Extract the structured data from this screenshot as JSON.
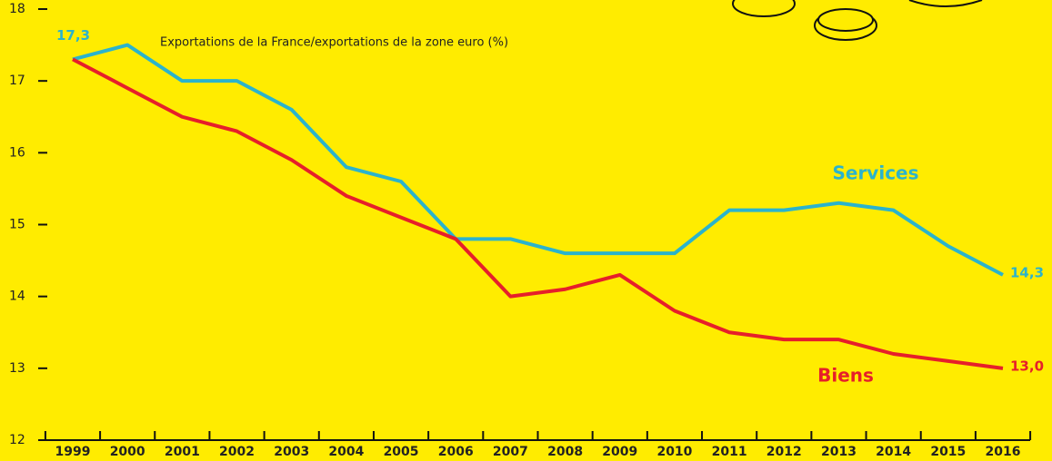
{
  "chart_data": {
    "type": "line",
    "title": "Exportations de la France/exportations de la zone euro (%)",
    "categories": [
      "1999",
      "2000",
      "2001",
      "2002",
      "2003",
      "2004",
      "2005",
      "2006",
      "2007",
      "2008",
      "2009",
      "2010",
      "2011",
      "2012",
      "2013",
      "2014",
      "2015",
      "2016"
    ],
    "series": [
      {
        "name": "Services",
        "color": "#2bb3cc",
        "values": [
          17.3,
          17.5,
          17.0,
          17.0,
          16.6,
          15.8,
          15.6,
          14.8,
          14.8,
          14.6,
          14.6,
          14.6,
          15.2,
          15.2,
          15.3,
          15.2,
          14.7,
          14.3
        ],
        "value_labels": [
          "17,3",
          null,
          null,
          null,
          null,
          null,
          null,
          null,
          null,
          null,
          null,
          null,
          null,
          null,
          null,
          null,
          null,
          "14,3"
        ]
      },
      {
        "name": "Biens",
        "color": "#e61f2a",
        "values": [
          17.3,
          16.9,
          16.5,
          16.3,
          15.9,
          15.4,
          15.1,
          14.8,
          14.0,
          14.1,
          14.3,
          13.8,
          13.5,
          13.4,
          13.4,
          13.2,
          13.1,
          13.0
        ],
        "value_labels": [
          null,
          null,
          null,
          null,
          null,
          null,
          null,
          null,
          null,
          null,
          null,
          null,
          null,
          null,
          null,
          null,
          null,
          "13,0"
        ]
      }
    ],
    "ylim": [
      12,
      18
    ],
    "yticks": [
      12,
      13,
      14,
      15,
      16,
      17,
      18
    ]
  }
}
